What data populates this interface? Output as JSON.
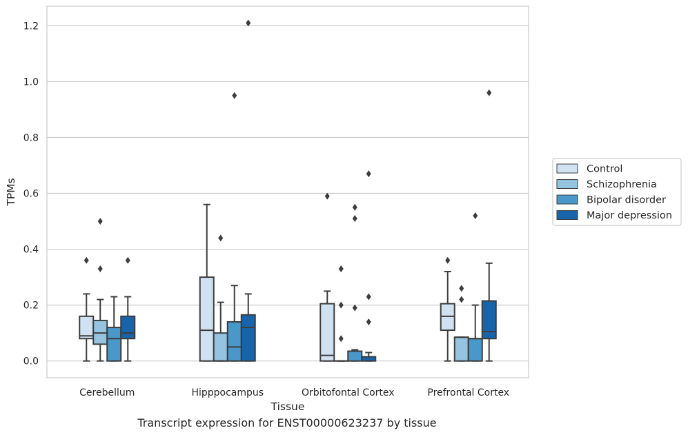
{
  "caption": "Transcript expression for ENST00000623237 by tissue",
  "colors": {
    "Control": "#d0e1f2",
    "Schizophrenia": "#94c4df",
    "Bipolar disorder": "#4a98c9",
    "Major depression": "#1764ab",
    "line": "#3d3d3d",
    "grid": "#cccccc",
    "frame": "#cccccc"
  },
  "chart_data": {
    "type": "box",
    "xlabel": "Tissue",
    "ylabel": "TPMs",
    "ylim": [
      -0.06,
      1.27
    ],
    "yticks": [
      0.0,
      0.2,
      0.4,
      0.6,
      0.8,
      1.0,
      1.2
    ],
    "ytick_labels": [
      "0.0",
      "0.2",
      "0.4",
      "0.6",
      "0.8",
      "1.0",
      "1.2"
    ],
    "grid": "horizontal",
    "legend_position": "right",
    "categories": [
      "Cerebellum",
      "Hipppocampus",
      "Orbitofontal Cortex",
      "Prefrontal Cortex"
    ],
    "series": [
      {
        "name": "Control",
        "boxes": [
          {
            "whislo": 0.0,
            "q1": 0.08,
            "med": 0.09,
            "q3": 0.16,
            "whishi": 0.24,
            "fliers": [
              0.36
            ]
          },
          {
            "whislo": 0.0,
            "q1": 0.0,
            "med": 0.11,
            "q3": 0.3,
            "whishi": 0.56,
            "fliers": []
          },
          {
            "whislo": 0.0,
            "q1": 0.0,
            "med": 0.02,
            "q3": 0.205,
            "whishi": 0.25,
            "fliers": [
              0.59
            ]
          },
          {
            "whislo": 0.0,
            "q1": 0.11,
            "med": 0.16,
            "q3": 0.205,
            "whishi": 0.32,
            "fliers": [
              0.36
            ]
          }
        ]
      },
      {
        "name": "Schizophrenia",
        "boxes": [
          {
            "whislo": 0.0,
            "q1": 0.06,
            "med": 0.1,
            "q3": 0.145,
            "whishi": 0.22,
            "fliers": [
              0.33,
              0.5
            ]
          },
          {
            "whislo": 0.0,
            "q1": 0.0,
            "med": 0.0,
            "q3": 0.1,
            "whishi": 0.21,
            "fliers": [
              0.44
            ]
          },
          {
            "whislo": 0.0,
            "q1": 0.0,
            "med": 0.0,
            "q3": 0.0,
            "whishi": 0.0,
            "fliers": [
              0.08,
              0.2,
              0.33
            ]
          },
          {
            "whislo": 0.0,
            "q1": 0.0,
            "med": 0.085,
            "q3": 0.085,
            "whishi": 0.085,
            "fliers": [
              0.22,
              0.26
            ]
          }
        ]
      },
      {
        "name": "Bipolar disorder",
        "boxes": [
          {
            "whislo": 0.0,
            "q1": 0.0,
            "med": 0.08,
            "q3": 0.12,
            "whishi": 0.23,
            "fliers": []
          },
          {
            "whislo": 0.0,
            "q1": 0.0,
            "med": 0.05,
            "q3": 0.14,
            "whishi": 0.27,
            "fliers": [
              0.95
            ]
          },
          {
            "whislo": 0.0,
            "q1": 0.0,
            "med": 0.035,
            "q3": 0.035,
            "whishi": 0.04,
            "fliers": [
              0.19,
              0.51,
              0.55
            ]
          },
          {
            "whislo": 0.0,
            "q1": 0.0,
            "med": 0.08,
            "q3": 0.08,
            "whishi": 0.2,
            "fliers": [
              0.52
            ]
          }
        ]
      },
      {
        "name": "Major depression",
        "boxes": [
          {
            "whislo": 0.0,
            "q1": 0.08,
            "med": 0.1,
            "q3": 0.16,
            "whishi": 0.23,
            "fliers": [
              0.36
            ]
          },
          {
            "whislo": 0.0,
            "q1": 0.0,
            "med": 0.12,
            "q3": 0.165,
            "whishi": 0.24,
            "fliers": [
              1.21
            ]
          },
          {
            "whislo": 0.0,
            "q1": 0.0,
            "med": 0.015,
            "q3": 0.015,
            "whishi": 0.03,
            "fliers": [
              0.14,
              0.23,
              0.67
            ]
          },
          {
            "whislo": 0.0,
            "q1": 0.08,
            "med": 0.105,
            "q3": 0.215,
            "whishi": 0.35,
            "fliers": [
              0.96
            ]
          }
        ]
      }
    ]
  }
}
